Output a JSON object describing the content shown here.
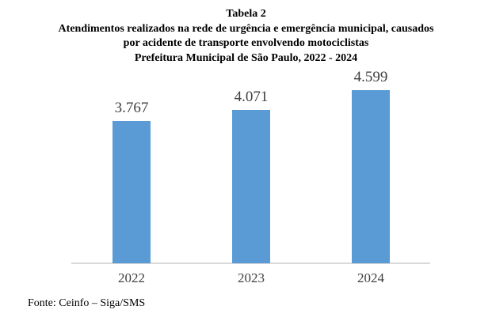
{
  "header": {
    "caption": "Tabela 2",
    "title_lines": [
      "Atendimentos realizados na rede de urgência e emergência municipal, causados",
      "por acidente de transporte envolvendo motociclistas",
      "Prefeitura Municipal de São Paulo, 2022 - 2024"
    ]
  },
  "chart_data": {
    "type": "bar",
    "categories": [
      "2022",
      "2023",
      "2024"
    ],
    "values": [
      3767,
      4071,
      4599
    ],
    "value_labels": [
      "3.767",
      "4.071",
      "4.599"
    ],
    "title": "Tabela 2 — Atendimentos realizados na rede de urgência e emergência municipal, causados por acidente de transporte envolvendo motociclistas — Prefeitura Municipal de São Paulo, 2022 - 2024",
    "xlabel": "",
    "ylabel": "",
    "ylim": [
      0,
      4800
    ],
    "grid": false,
    "legend": false,
    "data_labels": true,
    "bar_color": "#5b9bd5",
    "axis_color": "#d9d9d9",
    "label_color": "#404040"
  },
  "source": {
    "text": "Fonte: Ceinfo – Siga/SMS"
  }
}
